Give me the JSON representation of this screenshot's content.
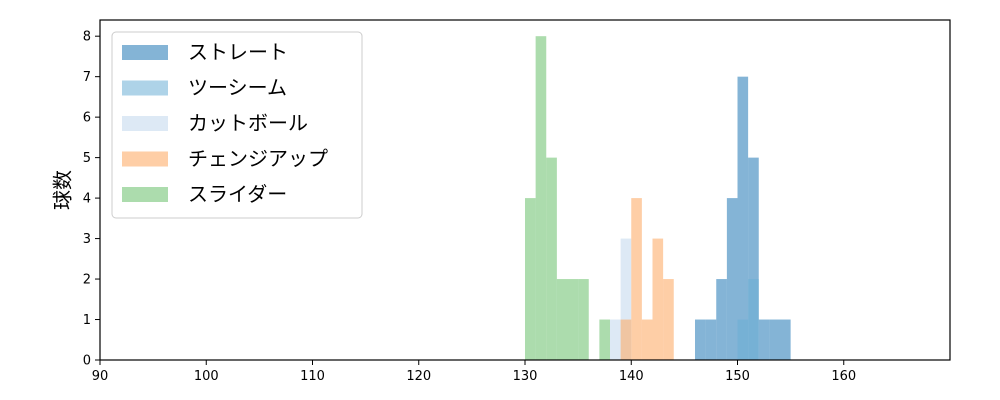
{
  "chart_data": {
    "type": "bar",
    "title": "",
    "xlabel": "",
    "ylabel": "球数",
    "xlim": [
      90,
      170
    ],
    "ylim": [
      0,
      8.4
    ],
    "x_ticks": [
      90,
      100,
      110,
      120,
      130,
      140,
      150,
      160
    ],
    "y_ticks": [
      0,
      1,
      2,
      3,
      4,
      5,
      6,
      7,
      8
    ],
    "grid": false,
    "legend_position": "top-left",
    "series": [
      {
        "name": "ストレート",
        "color": "#1f77b4",
        "opacity": 0.55,
        "bins": [
          {
            "x0": 146.0,
            "x1": 147.0,
            "count": 1
          },
          {
            "x0": 147.0,
            "x1": 148.0,
            "count": 1
          },
          {
            "x0": 148.0,
            "x1": 149.0,
            "count": 2
          },
          {
            "x0": 149.0,
            "x1": 150.0,
            "count": 4
          },
          {
            "x0": 150.0,
            "x1": 151.0,
            "count": 7
          },
          {
            "x0": 151.0,
            "x1": 152.0,
            "count": 5
          },
          {
            "x0": 152.0,
            "x1": 153.0,
            "count": 1
          },
          {
            "x0": 153.0,
            "x1": 154.0,
            "count": 1
          },
          {
            "x0": 154.0,
            "x1": 155.0,
            "count": 1
          }
        ]
      },
      {
        "name": "ツーシーム",
        "color": "#6baed6",
        "opacity": 0.55,
        "bins": [
          {
            "x0": 150.0,
            "x1": 151.0,
            "count": 1
          },
          {
            "x0": 151.0,
            "x1": 152.0,
            "count": 2
          }
        ]
      },
      {
        "name": "カットボール",
        "color": "#c6dbef",
        "opacity": 0.6,
        "bins": [
          {
            "x0": 138.0,
            "x1": 139.0,
            "count": 1
          },
          {
            "x0": 139.0,
            "x1": 140.0,
            "count": 3
          }
        ]
      },
      {
        "name": "チェンジアップ",
        "color": "#fdae6b",
        "opacity": 0.6,
        "bins": [
          {
            "x0": 139.0,
            "x1": 140.0,
            "count": 1
          },
          {
            "x0": 140.0,
            "x1": 141.0,
            "count": 4
          },
          {
            "x0": 141.0,
            "x1": 142.0,
            "count": 1
          },
          {
            "x0": 142.0,
            "x1": 143.0,
            "count": 3
          },
          {
            "x0": 143.0,
            "x1": 144.0,
            "count": 2
          }
        ]
      },
      {
        "name": "スライダー",
        "color": "#74c476",
        "opacity": 0.6,
        "bins": [
          {
            "x0": 130.0,
            "x1": 131.0,
            "count": 4
          },
          {
            "x0": 131.0,
            "x1": 132.0,
            "count": 8
          },
          {
            "x0": 132.0,
            "x1": 133.0,
            "count": 5
          },
          {
            "x0": 133.0,
            "x1": 134.0,
            "count": 2
          },
          {
            "x0": 134.0,
            "x1": 135.0,
            "count": 2
          },
          {
            "x0": 135.0,
            "x1": 136.0,
            "count": 2
          },
          {
            "x0": 137.0,
            "x1": 138.0,
            "count": 1
          }
        ]
      }
    ]
  }
}
